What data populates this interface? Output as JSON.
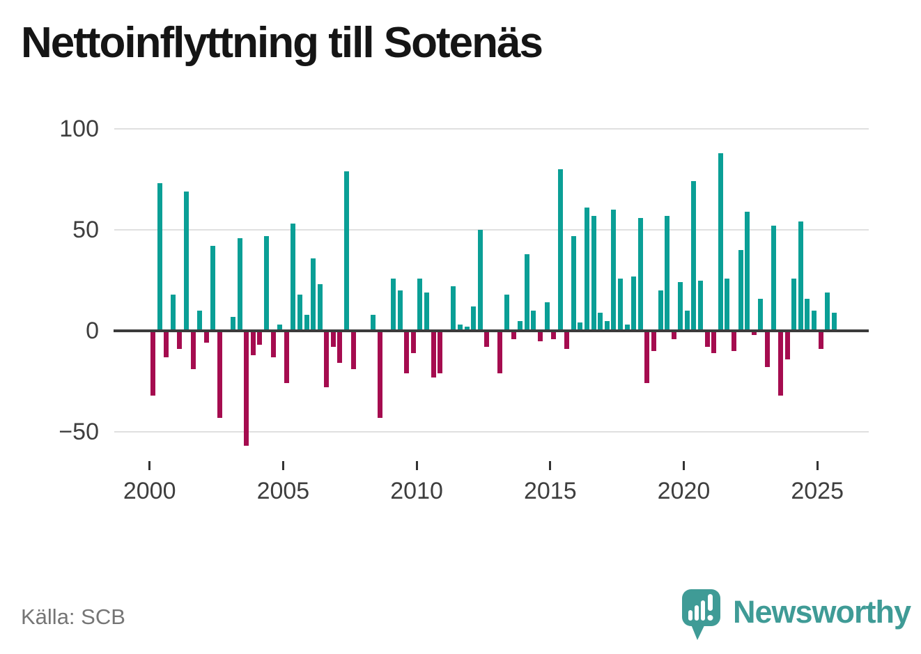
{
  "header": {
    "title": "Nettoinflyttning till Sotenäs"
  },
  "footer": {
    "source": "Källa: SCB",
    "brand": "Newsworthy"
  },
  "icons": {
    "brand_icon": "newsworthy-speech-bubble-bar-chart-icon"
  },
  "colors": {
    "positive": "#0a9f96",
    "negative": "#a50c4f",
    "grid": "#e0e0e0",
    "zero_line": "#3b3b3b",
    "axis_text": "#3e3e3e",
    "title_text": "#151515",
    "source_text": "#757575",
    "brand_teal": "#3f9b96",
    "background": "#ffffff"
  },
  "chart_data": {
    "type": "bar",
    "title": "Nettoinflyttning till Sotenäs",
    "frequency": "quarterly",
    "start_quarter": "2000-Q1",
    "end_quarter": "2025-Q3",
    "xlabel": "",
    "ylabel": "",
    "grid": "horizontal",
    "legend": "none",
    "ylim": [
      -62,
      107
    ],
    "y_ticks": [
      100,
      50,
      0,
      -50
    ],
    "y_tick_labels": [
      "100",
      "50",
      "0",
      "−50"
    ],
    "x_tick_years": [
      2000,
      2005,
      2010,
      2015,
      2020,
      2025
    ],
    "x_tick_labels": [
      "2000",
      "2005",
      "2010",
      "2015",
      "2020",
      "2025"
    ],
    "positive_color": "#0a9f96",
    "negative_color": "#a50c4f",
    "values": [
      -32,
      73,
      -13,
      18,
      -9,
      69,
      -19,
      10,
      -6,
      42,
      -43,
      0,
      7,
      46,
      -57,
      -12,
      -7,
      47,
      -13,
      3,
      -26,
      53,
      18,
      8,
      36,
      23,
      -28,
      -8,
      -16,
      79,
      -19,
      0,
      0,
      8,
      -43,
      0,
      26,
      20,
      -21,
      -11,
      26,
      19,
      -23,
      -21,
      0,
      22,
      3,
      2,
      12,
      50,
      -8,
      0,
      -21,
      18,
      -4,
      5,
      38,
      10,
      -5,
      14,
      -4,
      80,
      -9,
      47,
      4,
      61,
      57,
      9,
      5,
      60,
      26,
      3,
      27,
      56,
      -26,
      -10,
      20,
      57,
      -4,
      24,
      10,
      74,
      25,
      -8,
      -11,
      88,
      26,
      -10,
      40,
      59,
      -2,
      16,
      -18,
      52,
      -32,
      -14,
      26,
      54,
      16,
      10,
      -9,
      19,
      9
    ]
  }
}
